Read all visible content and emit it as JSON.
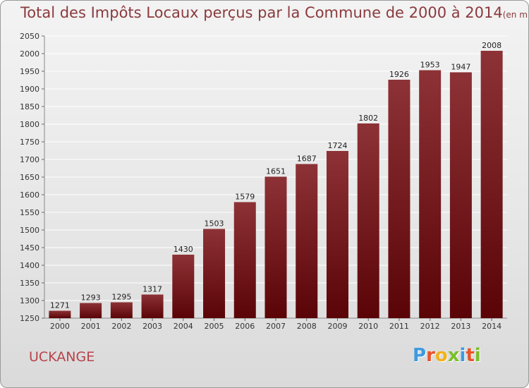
{
  "header": {
    "title": "Total des Impôts Locaux perçus par la Commune de 2000 à 2014",
    "unit": "(en milliers d'€)"
  },
  "commune": "UCKANGE",
  "logo": {
    "text": "Proxiti",
    "colors": [
      "#3d9be0",
      "#e8542a",
      "#f2b21c",
      "#7bbf2a",
      "#3d9be0",
      "#e8542a",
      "#7bbf2a"
    ]
  },
  "chart_data": {
    "type": "bar",
    "categories": [
      "2000",
      "2001",
      "2002",
      "2003",
      "2004",
      "2005",
      "2006",
      "2007",
      "2008",
      "2009",
      "2010",
      "2011",
      "2012",
      "2013",
      "2014"
    ],
    "values": [
      1271,
      1293,
      1295,
      1317,
      1430,
      1503,
      1579,
      1651,
      1687,
      1724,
      1802,
      1926,
      1953,
      1947,
      2008
    ],
    "ylim": [
      1250,
      2050
    ],
    "yticks": [
      1250,
      1300,
      1350,
      1400,
      1450,
      1500,
      1550,
      1600,
      1650,
      1700,
      1750,
      1800,
      1850,
      1900,
      1950,
      2000,
      2050
    ],
    "grid": true,
    "bar_color": "#7a1e22"
  }
}
